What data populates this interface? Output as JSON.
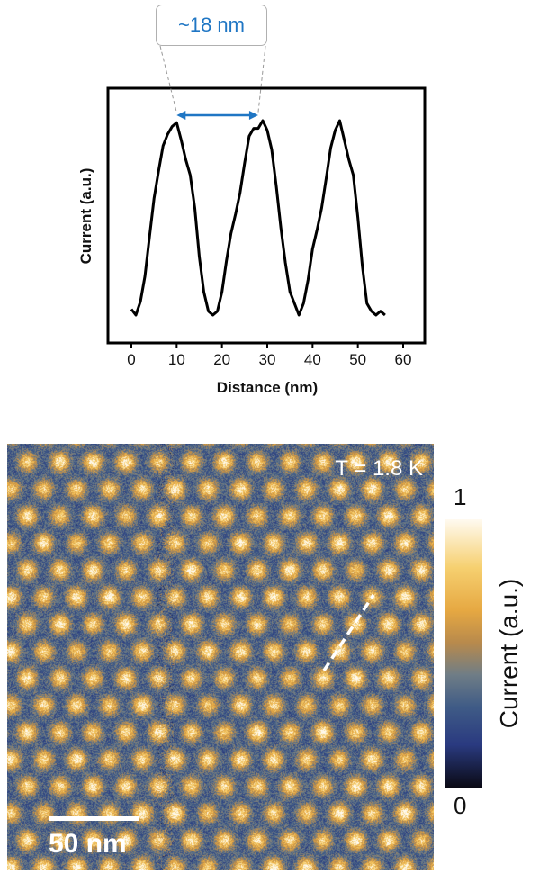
{
  "chart_data": [
    {
      "type": "line",
      "title": "",
      "xlabel": "Distance (nm)",
      "ylabel": "Current (a.u.)",
      "xlim": [
        -5,
        65
      ],
      "xticks": [
        0,
        10,
        20,
        30,
        40,
        50,
        60
      ],
      "yticks": [],
      "grid": false,
      "series": [
        {
          "x": [
            0,
            1,
            2,
            3,
            4,
            5,
            6,
            7,
            8,
            9,
            10,
            11,
            12,
            13,
            14,
            15,
            16,
            17,
            18,
            19,
            20,
            21,
            22,
            23,
            24,
            25,
            26,
            27,
            28,
            29,
            30,
            31,
            32,
            33,
            34,
            35,
            36,
            37,
            38,
            39,
            40,
            41,
            42,
            43,
            44,
            45,
            46,
            47,
            48,
            49,
            50,
            51,
            52,
            53,
            54,
            55,
            56
          ],
          "y": [
            0.03,
            0.0,
            0.07,
            0.2,
            0.4,
            0.6,
            0.74,
            0.87,
            0.93,
            0.97,
            0.99,
            0.9,
            0.8,
            0.72,
            0.55,
            0.3,
            0.12,
            0.02,
            0.0,
            0.02,
            0.12,
            0.28,
            0.42,
            0.52,
            0.63,
            0.78,
            0.92,
            0.96,
            0.96,
            1.0,
            0.95,
            0.85,
            0.66,
            0.45,
            0.27,
            0.12,
            0.06,
            0.0,
            0.06,
            0.18,
            0.34,
            0.44,
            0.55,
            0.7,
            0.86,
            0.95,
            1.0,
            0.9,
            0.8,
            0.72,
            0.5,
            0.25,
            0.06,
            0.02,
            0.0,
            0.02,
            0.0
          ]
        }
      ],
      "annotation": {
        "label": "~18 nm",
        "from_x": 10,
        "to_x": 28,
        "color": "#1f76c4"
      }
    },
    {
      "type": "heatmap",
      "label": "T = 1.8 K",
      "scalebar_label": "50 nm",
      "colorbar": {
        "label": "Current (a.u.)",
        "min_label": "0",
        "max_label": "1",
        "colors": [
          "#0a0a14",
          "#2a3a80",
          "#3f5b86",
          "#6f7d86",
          "#b88a4c",
          "#e6a842",
          "#f6d070",
          "#fffaf0"
        ]
      }
    }
  ]
}
